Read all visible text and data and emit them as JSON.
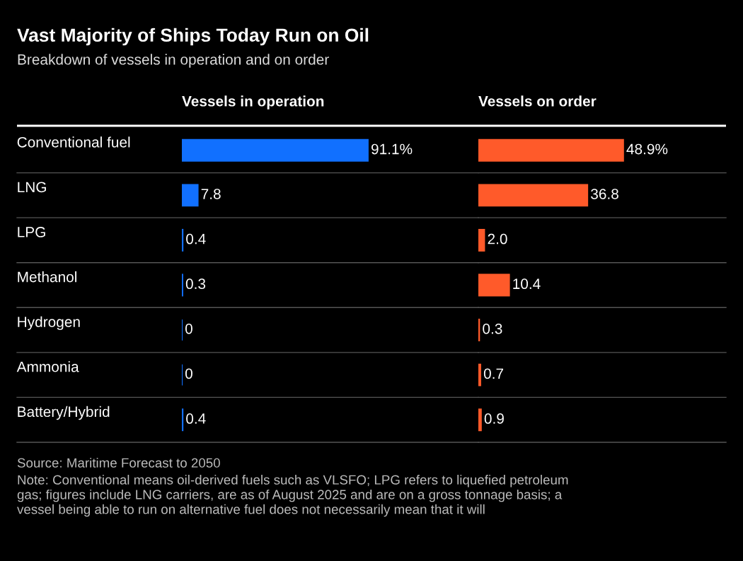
{
  "chart_data": [
    {
      "type": "other",
      "title": "Vast Majority of Ships Today Run on Oil",
      "subtitle": "Breakdown of vessels in operation and on order",
      "annotations": [
        "Source: Maritime Forecast to 2050",
        "Note: Conventional means oil-derived fuels such as VLSFO; LPG refers to liquefied petroleum gas; figures include LNG carriers, are as of August 2025 and are on a gross tonnage basis; a vessel being able to run on alternative fuel does not necessarily mean that it will"
      ]
    },
    {
      "type": "bar",
      "orientation": "horizontal",
      "title": "Vessels in operation",
      "categories": [
        "Conventional fuel",
        "LNG",
        "LPG",
        "Methanol",
        "Hydrogen",
        "Ammonia",
        "Battery/Hybrid"
      ],
      "values": [
        91.1,
        7.8,
        0.4,
        0.3,
        0,
        0,
        0.4
      ],
      "value_labels": [
        "91.1%",
        "7.8",
        "0.4",
        "0.3",
        "0",
        "0",
        "0.4"
      ],
      "color": "#1170ff",
      "tick_labels": "y"
    },
    {
      "type": "bar",
      "orientation": "horizontal",
      "title": "Vessels on order",
      "categories": [
        null,
        null,
        null,
        null,
        null,
        null,
        null
      ],
      "values": [
        48.9,
        36.8,
        2.0,
        10.4,
        0.3,
        0.7,
        0.9
      ],
      "value_labels": [
        "48.9%",
        "36.8",
        "2.0",
        "10.4",
        "0.3",
        "0.7",
        "0.9"
      ],
      "color": "#ff5a2a",
      "tick_labels": false
    }
  ]
}
